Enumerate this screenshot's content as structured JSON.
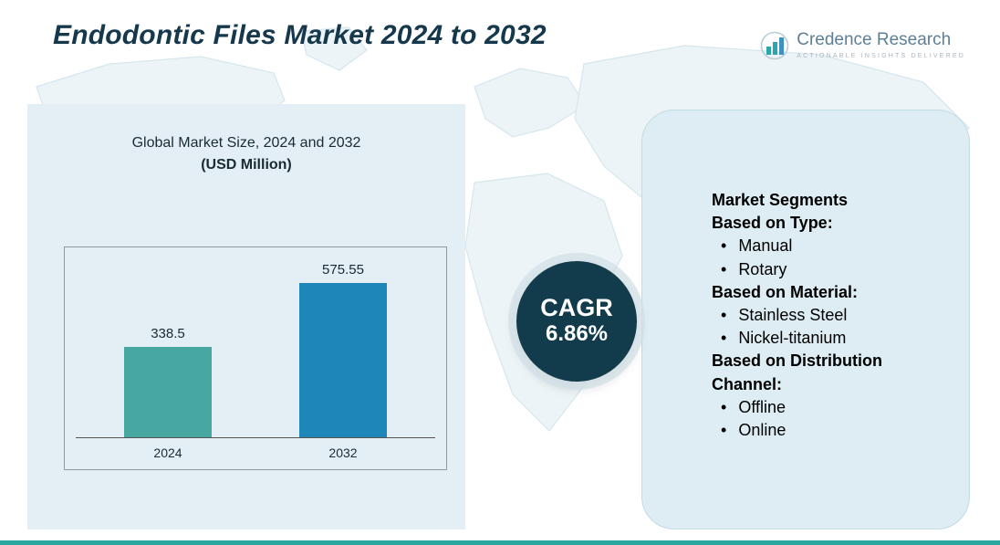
{
  "page": {
    "title": "Endodontic Files Market 2024 to 2032"
  },
  "logo": {
    "brand": "Credence Research",
    "tagline": "Actionable Insights Delivered"
  },
  "chart_panel": {
    "subtitle": "Global Market Size, 2024 and 2032",
    "unit": "(USD Million)"
  },
  "chart_data": {
    "type": "bar",
    "title": "Global Market Size, 2024 and 2032 (USD Million)",
    "categories": [
      "2024",
      "2032"
    ],
    "values": [
      338.5,
      575.55
    ],
    "value_labels": [
      "338.5",
      "575.55"
    ],
    "ylim": [
      0,
      650
    ],
    "colors": [
      "#46a8a0",
      "#1e86b8"
    ],
    "grid": false,
    "legend": false
  },
  "cagr": {
    "label": "CAGR",
    "value": "6.86%"
  },
  "segments": {
    "heading": "Market Segments",
    "groups": [
      {
        "label": "Based on Type:",
        "items": [
          "Manual",
          "Rotary"
        ]
      },
      {
        "label": "Based on Material:",
        "items": [
          "Stainless Steel",
          "Nickel-titanium"
        ]
      },
      {
        "label": "Based on Distribution Channel:",
        "items": [
          "Offline",
          "Online"
        ]
      }
    ]
  },
  "accent_colors": {
    "title_text": "#16384d",
    "badge_background": "#123c4c",
    "panel_background": "#e3eff4",
    "bottom_strip": "#2aa79f",
    "bar_2024": "#46a8a0",
    "bar_2032": "#1e86b8"
  }
}
